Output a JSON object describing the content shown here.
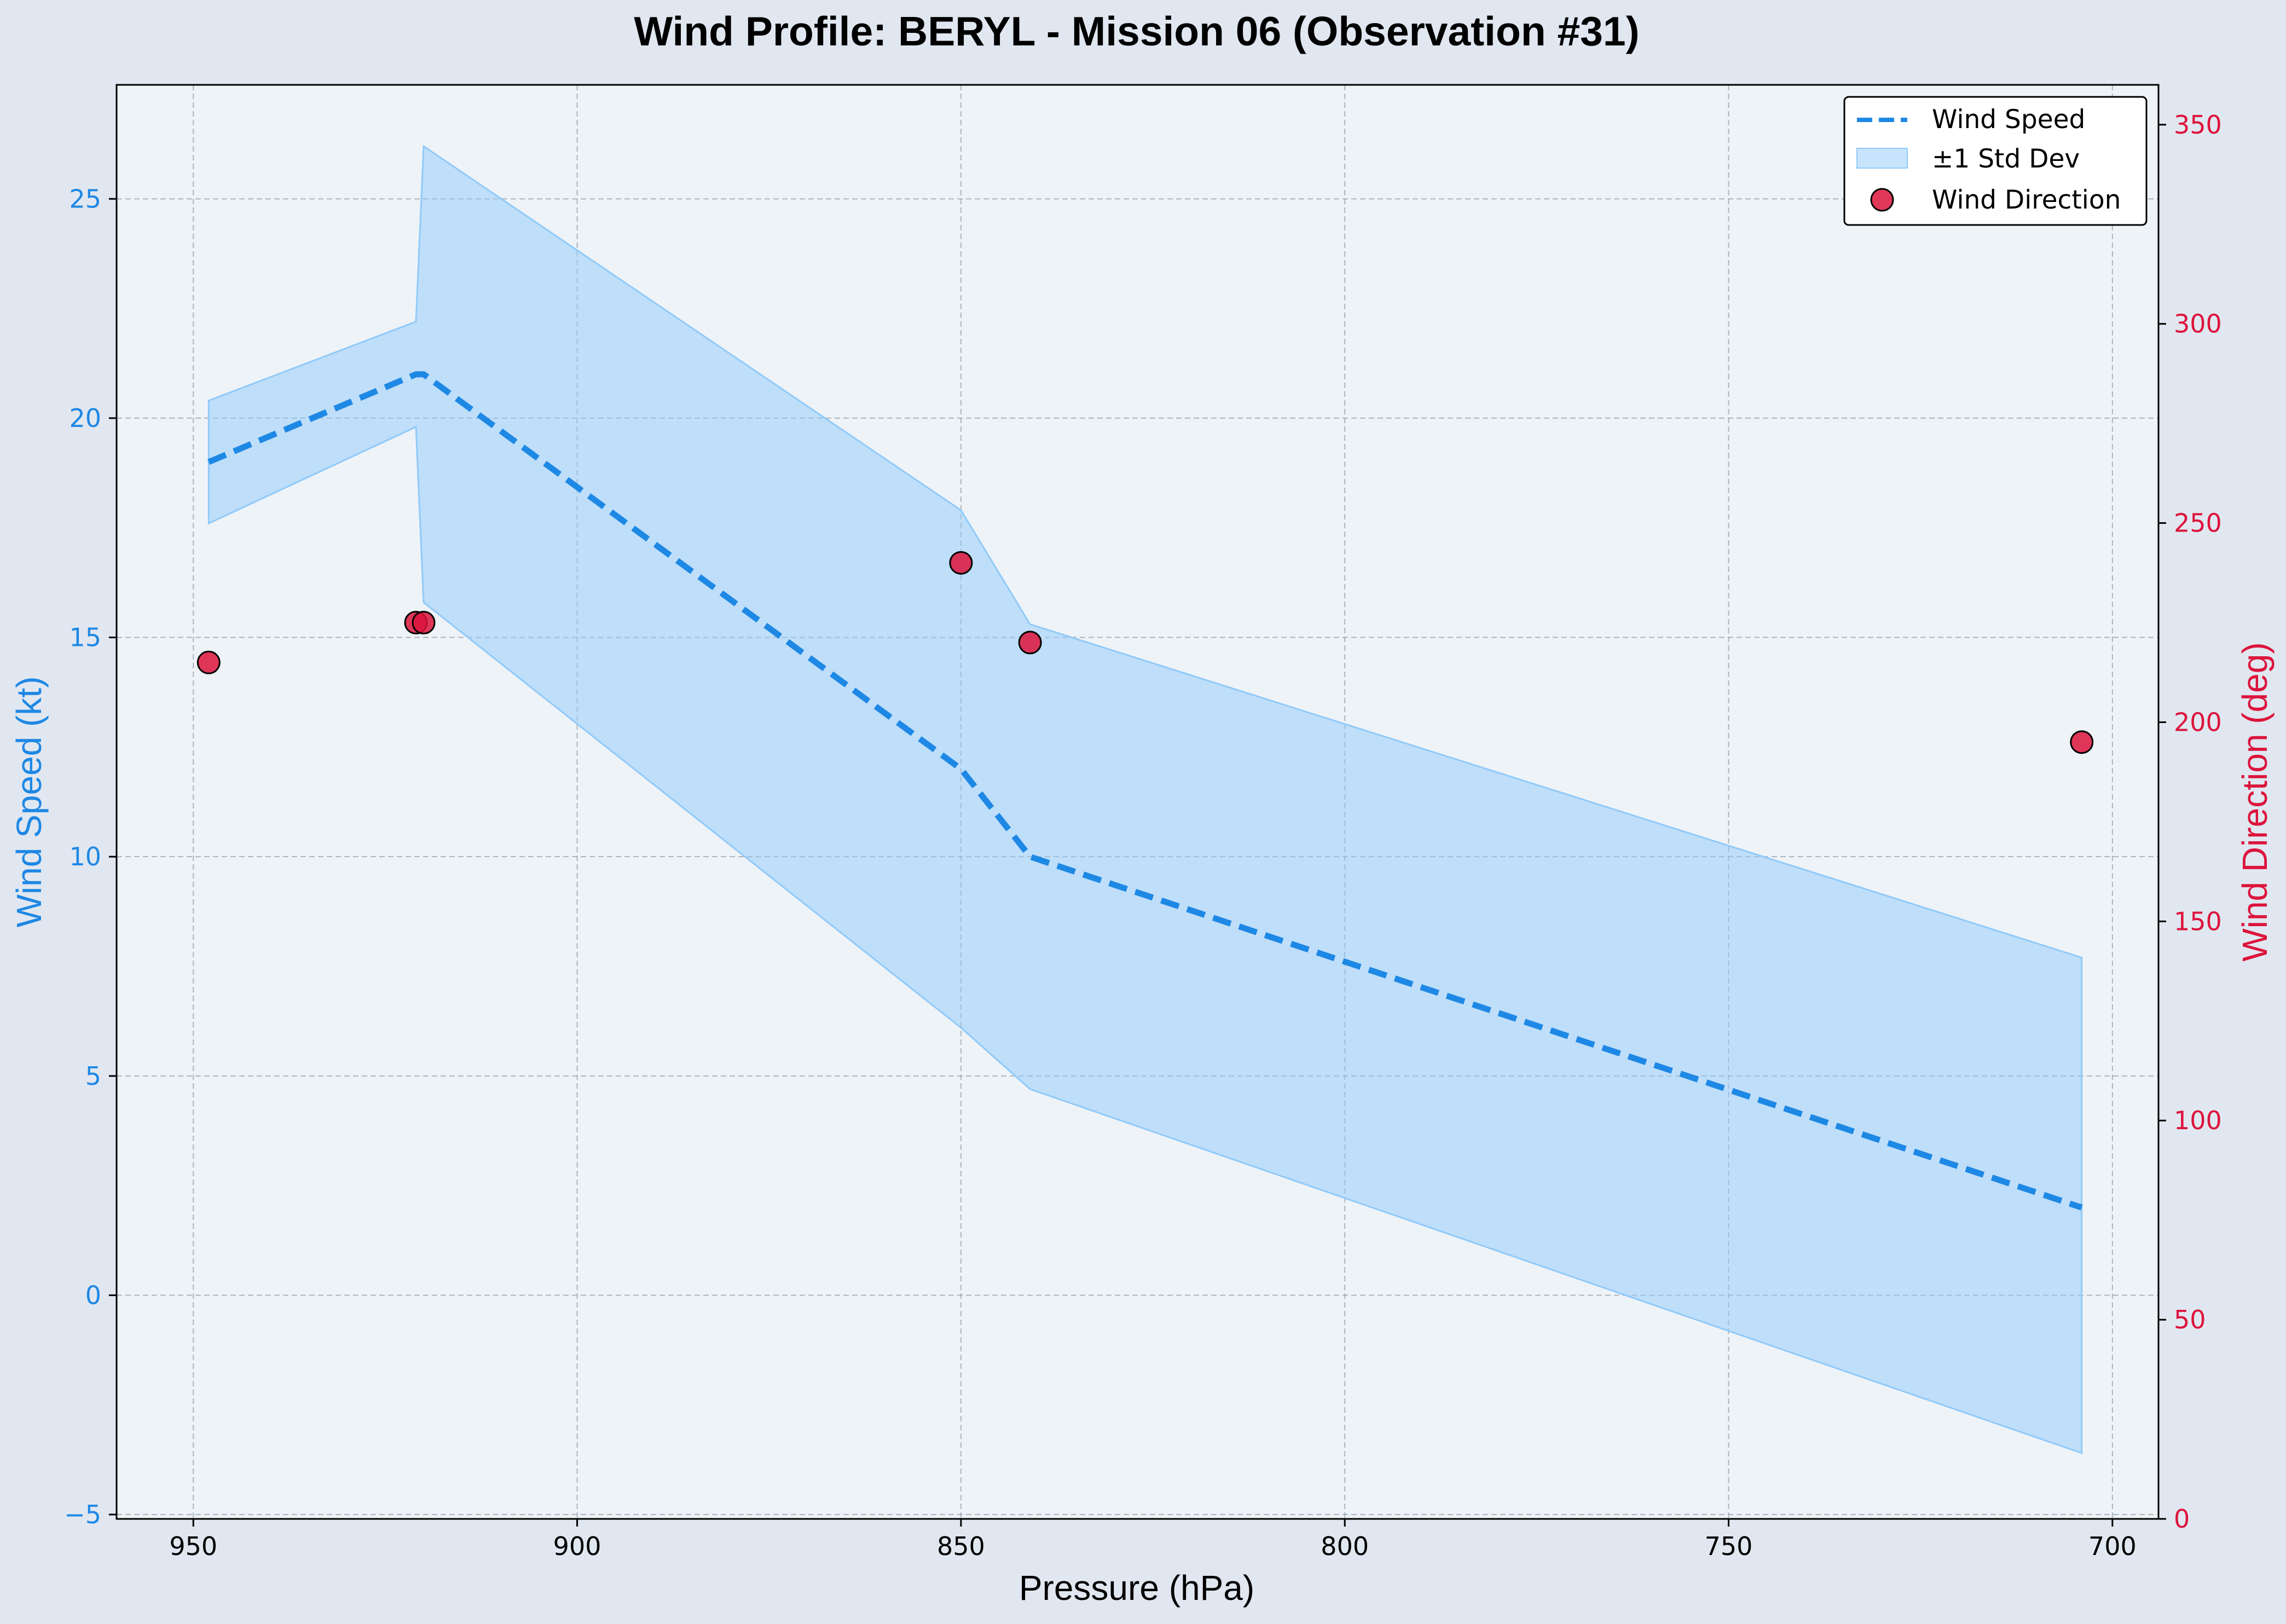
{
  "chart_data": {
    "type": "line",
    "title": "Wind Profile: BERYL - Mission 06 (Observation #31)",
    "xlabel": "Pressure (hPa)",
    "ylabel_left": "Wind Speed (kt)",
    "ylabel_right": "Wind Direction (deg)",
    "x_inverted": true,
    "xlim": [
      960,
      694
    ],
    "ylim_left": [
      -5.1,
      27.6
    ],
    "ylim_right": [
      0,
      360
    ],
    "x_ticks": [
      950,
      900,
      850,
      800,
      750,
      700
    ],
    "y_ticks_left": [
      -5,
      0,
      5,
      10,
      15,
      20,
      25
    ],
    "y_ticks_right": [
      0,
      50,
      100,
      150,
      200,
      250,
      300,
      350
    ],
    "grid": true,
    "legend_position": "top-right",
    "colors": {
      "speed": "#1e88e5",
      "band": "#90caf9",
      "direction": "#dc143c",
      "plot_bg": "#eef3f8",
      "fig_bg": "#e1e7f0"
    },
    "series": [
      {
        "name": "Wind Speed",
        "axis": "left",
        "x": [
          948,
          921,
          920,
          850,
          841,
          704
        ],
        "y": [
          19.0,
          21.0,
          21.0,
          12.0,
          10.0,
          2.0
        ]
      },
      {
        "name": "±1 Std Dev",
        "axis": "left",
        "x": [
          948,
          921,
          920,
          850,
          841,
          704
        ],
        "upper": [
          20.4,
          22.2,
          26.2,
          17.9,
          15.3,
          7.7
        ],
        "lower": [
          17.6,
          19.8,
          15.8,
          6.1,
          4.7,
          -3.6
        ]
      },
      {
        "name": "Wind Direction",
        "axis": "right",
        "type": "scatter",
        "x": [
          948,
          921,
          920,
          850,
          841,
          704
        ],
        "y": [
          215,
          225,
          225,
          240,
          220,
          195
        ]
      }
    ]
  }
}
